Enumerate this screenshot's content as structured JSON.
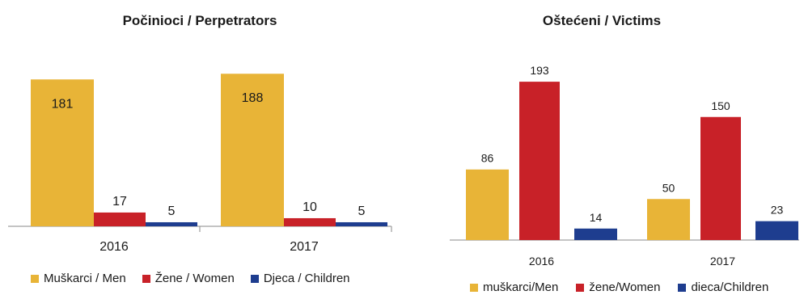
{
  "chart_data": [
    {
      "type": "bar",
      "title": "Počinioci / Perpetrators",
      "categories": [
        "2016",
        "2017"
      ],
      "series": [
        {
          "name": "Muškarci / Men",
          "values": [
            181,
            188
          ],
          "color": "#E8B437"
        },
        {
          "name": "Žene / Women",
          "values": [
            17,
            10
          ],
          "color": "#C82128"
        },
        {
          "name": "Djeca / Children",
          "values": [
            5,
            5
          ],
          "color": "#1E3D8F"
        }
      ],
      "ylim": [
        0,
        200
      ],
      "grid": false,
      "legend_position": "bottom",
      "data_labels": true
    },
    {
      "type": "bar",
      "title": "Oštećeni / Victims",
      "categories": [
        "2016",
        "2017"
      ],
      "series": [
        {
          "name": "muškarci/Men",
          "values": [
            86,
            50
          ],
          "color": "#E8B437"
        },
        {
          "name": "žene/Women",
          "values": [
            193,
            150
          ],
          "color": "#C82128"
        },
        {
          "name": "dieca/Children",
          "values": [
            14,
            23
          ],
          "color": "#1E3D8F"
        }
      ],
      "ylim": [
        0,
        200
      ],
      "grid": false,
      "legend_position": "bottom",
      "data_labels": true
    }
  ]
}
